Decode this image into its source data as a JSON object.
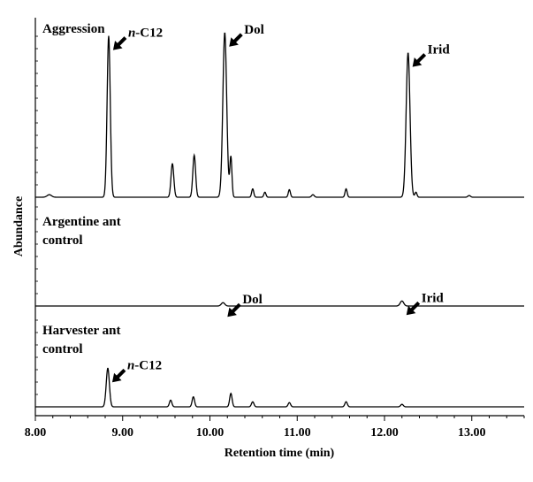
{
  "chart_data": {
    "type": "line",
    "xlabel": "Retention time (min)",
    "ylabel": "Abundance",
    "xlim": [
      8.0,
      13.6
    ],
    "x_ticks": [
      "8.00",
      "9.00",
      "10.00",
      "11.00",
      "12.00",
      "13.00"
    ],
    "panels": [
      {
        "label_lines": [
          "Aggression"
        ],
        "ymax": 100,
        "baseline": 1.5,
        "peaks": [
          {
            "x": 8.16,
            "h": 1.5,
            "w": 0.025
          },
          {
            "x": 8.84,
            "h": 96,
            "w": 0.018
          },
          {
            "x": 9.57,
            "h": 20,
            "w": 0.016
          },
          {
            "x": 9.82,
            "h": 25,
            "w": 0.016
          },
          {
            "x": 10.17,
            "h": 98,
            "w": 0.022
          },
          {
            "x": 10.24,
            "h": 24,
            "w": 0.012
          },
          {
            "x": 10.49,
            "h": 5,
            "w": 0.012
          },
          {
            "x": 10.63,
            "h": 3,
            "w": 0.012
          },
          {
            "x": 10.91,
            "h": 4.5,
            "w": 0.012
          },
          {
            "x": 11.18,
            "h": 1.5,
            "w": 0.015
          },
          {
            "x": 11.56,
            "h": 5,
            "w": 0.012
          },
          {
            "x": 12.27,
            "h": 86,
            "w": 0.022
          },
          {
            "x": 12.36,
            "h": 3,
            "w": 0.012
          },
          {
            "x": 12.97,
            "h": 1,
            "w": 0.015
          }
        ],
        "annotations": [
          {
            "text": "n-C12",
            "italic_prefix": "n",
            "x": 8.84,
            "y": 96
          },
          {
            "text": "Dol",
            "x": 10.17,
            "y": 98
          },
          {
            "text": "Irid",
            "x": 12.27,
            "y": 86
          }
        ]
      },
      {
        "label_lines": [
          "Argentine ant",
          "control"
        ],
        "ymax": 100,
        "baseline": 0,
        "peaks": [
          {
            "x": 10.15,
            "h": 2,
            "w": 0.02
          },
          {
            "x": 12.2,
            "h": 3,
            "w": 0.02
          }
        ],
        "annotations": [
          {
            "text": "Dol",
            "x": 10.15,
            "y": 2
          },
          {
            "text": "Irid",
            "x": 12.2,
            "y": 3
          }
        ]
      },
      {
        "label_lines": [
          "Harvester ant",
          "control"
        ],
        "ymax": 100,
        "baseline": 1.5,
        "peaks": [
          {
            "x": 8.83,
            "h": 23,
            "w": 0.018
          },
          {
            "x": 9.55,
            "h": 4,
            "w": 0.014
          },
          {
            "x": 9.81,
            "h": 6,
            "w": 0.014
          },
          {
            "x": 10.24,
            "h": 8,
            "w": 0.014
          },
          {
            "x": 10.49,
            "h": 3,
            "w": 0.014
          },
          {
            "x": 10.91,
            "h": 2.5,
            "w": 0.014
          },
          {
            "x": 11.56,
            "h": 3,
            "w": 0.014
          },
          {
            "x": 12.2,
            "h": 1.5,
            "w": 0.015
          }
        ],
        "annotations": [
          {
            "text": "n-C12",
            "italic_prefix": "n",
            "x": 8.83,
            "y": 23
          }
        ]
      }
    ]
  }
}
